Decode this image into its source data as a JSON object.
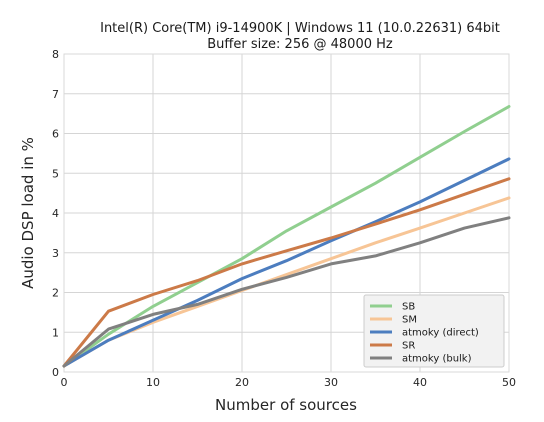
{
  "chart_data": {
    "type": "line",
    "title": "Intel(R) Core(TM) i9-14900K |  Windows 11  (10.0.22631) 64bit",
    "subtitle": "Buffer size: 256 @ 48000 Hz",
    "xlabel": "Number of sources",
    "ylabel": "Audio DSP load in %",
    "xlim": [
      0,
      50
    ],
    "ylim": [
      0,
      8
    ],
    "xticks": [
      0,
      10,
      20,
      30,
      40,
      50
    ],
    "yticks": [
      0,
      1,
      2,
      3,
      4,
      5,
      6,
      7,
      8
    ],
    "grid": true,
    "legend_position": "bottom-right",
    "series": [
      {
        "name": "SB",
        "color": "#90cf8f",
        "x": [
          0,
          5,
          10,
          15,
          20,
          25,
          30,
          35,
          40,
          45,
          50
        ],
        "values": [
          0.15,
          0.95,
          1.65,
          2.25,
          2.85,
          3.55,
          4.15,
          4.75,
          5.4,
          6.05,
          6.68
        ]
      },
      {
        "name": "SM",
        "color": "#f7c596",
        "x": [
          0,
          5,
          10,
          15,
          20,
          25,
          30,
          35,
          40,
          45,
          50
        ],
        "values": [
          0.15,
          0.8,
          1.25,
          1.65,
          2.05,
          2.45,
          2.85,
          3.25,
          3.62,
          4.0,
          4.38
        ]
      },
      {
        "name": "atmoky (direct)",
        "color": "#4c7dbf",
        "x": [
          0,
          5,
          10,
          15,
          20,
          25,
          30,
          35,
          40,
          45,
          50
        ],
        "values": [
          0.15,
          0.8,
          1.3,
          1.8,
          2.35,
          2.8,
          3.3,
          3.78,
          4.28,
          4.82,
          5.36
        ]
      },
      {
        "name": "SR",
        "color": "#cc7a48",
        "x": [
          0,
          5,
          10,
          15,
          20,
          25,
          30,
          35,
          40,
          45,
          50
        ],
        "values": [
          0.15,
          1.53,
          1.95,
          2.3,
          2.72,
          3.05,
          3.37,
          3.72,
          4.08,
          4.47,
          4.86
        ]
      },
      {
        "name": "atmoky (bulk)",
        "color": "#808080",
        "x": [
          0,
          5,
          10,
          15,
          20,
          25,
          30,
          35,
          40,
          45,
          50
        ],
        "values": [
          0.15,
          1.08,
          1.45,
          1.7,
          2.08,
          2.38,
          2.72,
          2.92,
          3.25,
          3.62,
          3.88
        ]
      }
    ]
  }
}
